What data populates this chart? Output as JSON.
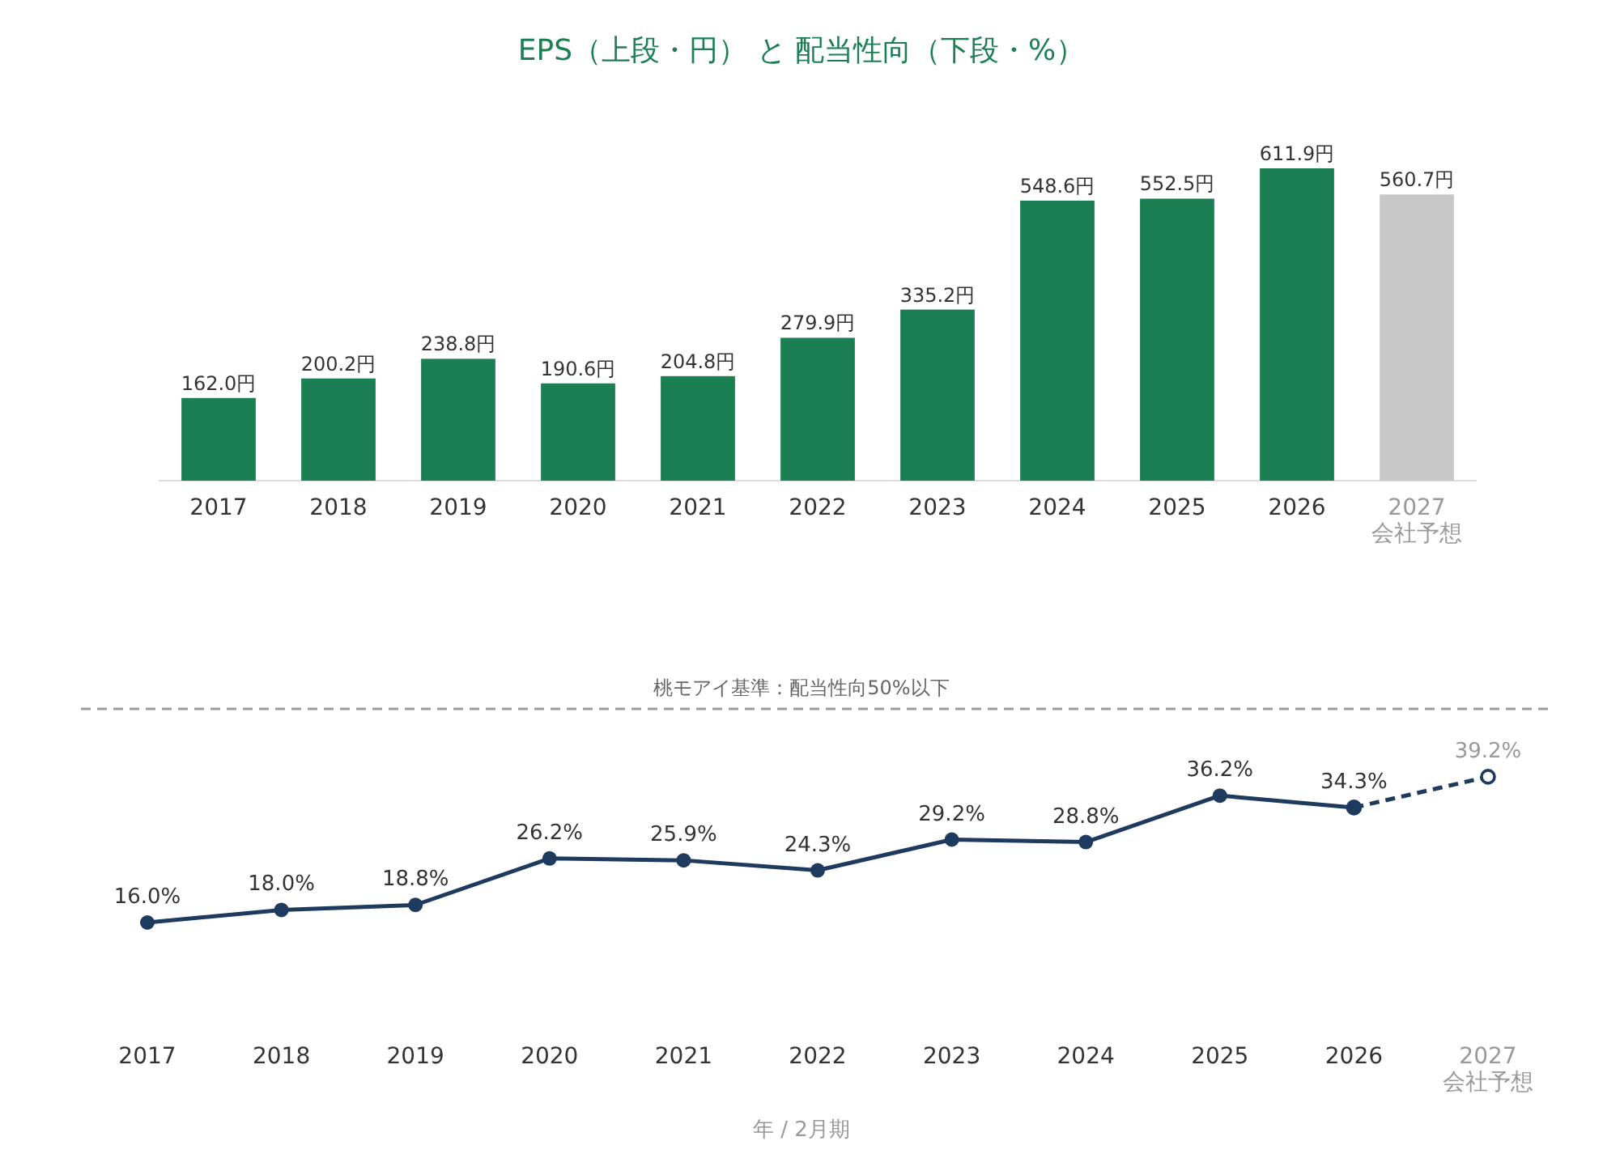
{
  "chart_data": [
    {
      "type": "bar",
      "title": "EPS（上段・円） と 配当性向（下段・%）",
      "categories": [
        "2017",
        "2018",
        "2019",
        "2020",
        "2021",
        "2022",
        "2023",
        "2024",
        "2025",
        "2026",
        "2027\n会社予想"
      ],
      "values": [
        162.0,
        200.2,
        238.8,
        190.6,
        204.8,
        279.9,
        335.2,
        548.6,
        552.5,
        611.9,
        560.7
      ],
      "colors": [
        "#1b7f53",
        "#1b7f53",
        "#1b7f53",
        "#1b7f53",
        "#1b7f53",
        "#1b7f53",
        "#1b7f53",
        "#1b7f53",
        "#1b7f53",
        "#1b7f53",
        "#c8c8c8"
      ],
      "value_labels": [
        "162.0円",
        "200.2円",
        "238.8円",
        "190.6円",
        "204.8円",
        "279.9円",
        "335.2円",
        "548.6円",
        "552.5円",
        "611.9円",
        "560.7円"
      ],
      "orientation": "vertical"
    },
    {
      "type": "line",
      "xlabel": "年 / 2月期",
      "categories": [
        "2017",
        "2018",
        "2019",
        "2020",
        "2021",
        "2022",
        "2023",
        "2024",
        "2025",
        "2026",
        "2027\n会社予想"
      ],
      "series": [
        {
          "color": "#1f3a5f",
          "line_style": "dashed",
          "marker": "circle",
          "values": [
            null,
            null,
            null,
            null,
            null,
            null,
            null,
            null,
            null,
            34.3,
            39.2
          ],
          "value_labels": [
            null,
            null,
            null,
            null,
            null,
            null,
            null,
            null,
            null,
            null,
            "39.2%"
          ]
        },
        {
          "color": "#1f3a5f",
          "line_style": "solid",
          "marker": "circle",
          "values": [
            16.0,
            18.0,
            18.8,
            26.2,
            25.9,
            24.3,
            29.2,
            28.8,
            36.2,
            34.3,
            null
          ],
          "value_labels": [
            "16.0%",
            "18.0%",
            "18.8%",
            "26.2%",
            "25.9%",
            "24.3%",
            "29.2%",
            "28.8%",
            "36.2%",
            "34.3%",
            null
          ]
        }
      ],
      "ref_lines": [
        {
          "axis": "y",
          "value": 50,
          "label": "桃モアイ基準：配当性向50%以下",
          "color": "#999999",
          "line_style": "dashed"
        }
      ]
    }
  ]
}
